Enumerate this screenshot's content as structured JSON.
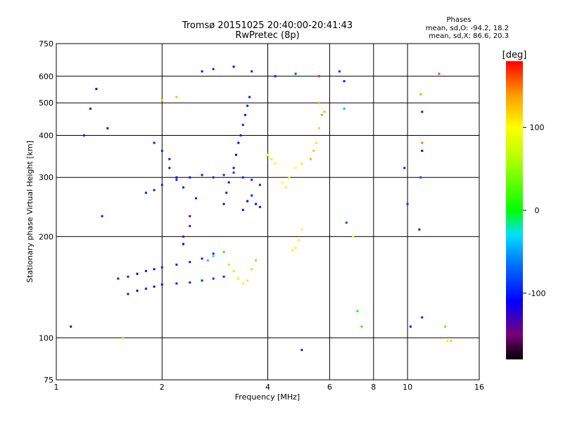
{
  "chart_data": {
    "type": "scatter",
    "title": "Tromsø 20151025 20:40:00-20:41:43",
    "subtitle": "RwPretec (8p)",
    "xlabel": "Frequency [MHz]",
    "ylabel": "Stationary phase Virtual Height [km]",
    "x_scale": "log",
    "y_scale": "log",
    "xlim": [
      1,
      16
    ],
    "ylim": [
      75,
      750
    ],
    "x_ticks": [
      {
        "value": 1,
        "label": "1"
      },
      {
        "value": 2,
        "label": "2"
      },
      {
        "value": 4,
        "label": "4"
      },
      {
        "value": 6,
        "label": "6"
      },
      {
        "value": 8,
        "label": "8"
      },
      {
        "value": 10,
        "label": "10"
      },
      {
        "value": 16,
        "label": "16"
      }
    ],
    "x_grid": [
      2,
      4,
      6,
      8,
      10
    ],
    "y_ticks": [
      {
        "value": 75,
        "label": "75"
      },
      {
        "value": 100,
        "label": "100"
      },
      {
        "value": 200,
        "label": "200"
      },
      {
        "value": 300,
        "label": "300"
      },
      {
        "value": 400,
        "label": "400"
      },
      {
        "value": 500,
        "label": "500"
      },
      {
        "value": 600,
        "label": "600"
      },
      {
        "value": 750,
        "label": "750"
      }
    ],
    "y_grid": [
      100,
      200,
      300,
      400,
      500,
      600
    ],
    "grid": true,
    "stats": {
      "heading": "Phases",
      "line_o": "mean, sd,O: -94.2, 18.2",
      "line_x": "mean, sd,X:  86.6, 20.3"
    },
    "colorbar": {
      "label": "[deg]",
      "range": [
        -180,
        180
      ],
      "ticks": [
        {
          "value": 100,
          "label": "100"
        },
        {
          "value": 0,
          "label": "0"
        },
        {
          "value": -100,
          "label": "-100"
        }
      ],
      "stops": [
        {
          "value": -180,
          "color": "#000000"
        },
        {
          "value": -150,
          "color": "#7a007a"
        },
        {
          "value": -110,
          "color": "#0000ff"
        },
        {
          "value": -60,
          "color": "#0080ff"
        },
        {
          "value": -30,
          "color": "#00e0ff"
        },
        {
          "value": 0,
          "color": "#00ff00"
        },
        {
          "value": 60,
          "color": "#b0ff00"
        },
        {
          "value": 100,
          "color": "#ffff00"
        },
        {
          "value": 140,
          "color": "#ff9900"
        },
        {
          "value": 180,
          "color": "#ff0000"
        }
      ]
    },
    "series": [
      {
        "points": [
          [
            1.6,
            135,
            -105
          ],
          [
            1.7,
            138,
            -108
          ],
          [
            1.8,
            140,
            -102
          ],
          [
            1.9,
            142,
            -110
          ],
          [
            2.0,
            144,
            -104
          ],
          [
            2.2,
            145,
            -98
          ],
          [
            2.4,
            146,
            -100
          ],
          [
            2.6,
            148,
            -96
          ],
          [
            2.8,
            150,
            -94
          ],
          [
            3.0,
            152,
            -92
          ],
          [
            1.5,
            150,
            -100
          ],
          [
            1.6,
            152,
            -95
          ],
          [
            1.7,
            155,
            -108
          ],
          [
            1.8,
            158,
            -102
          ],
          [
            1.9,
            160,
            -104
          ],
          [
            2.0,
            162,
            -98
          ],
          [
            2.2,
            165,
            -101
          ],
          [
            2.4,
            168,
            -99
          ],
          [
            2.6,
            172,
            -95
          ],
          [
            2.8,
            178,
            -90
          ],
          [
            1.8,
            270,
            -95
          ],
          [
            1.9,
            275,
            -100
          ],
          [
            2.0,
            285,
            -92
          ],
          [
            2.2,
            295,
            -96
          ],
          [
            2.4,
            300,
            -100
          ],
          [
            2.6,
            305,
            -98
          ],
          [
            2.8,
            300,
            -94
          ],
          [
            3.0,
            305,
            -90
          ],
          [
            3.2,
            310,
            -92
          ],
          [
            3.4,
            300,
            -96
          ],
          [
            3.6,
            295,
            -94
          ],
          [
            3.8,
            285,
            -98
          ],
          [
            1.9,
            380,
            -100
          ],
          [
            2.0,
            360,
            -95
          ],
          [
            2.1,
            340,
            -102
          ],
          [
            2.1,
            320,
            -98
          ],
          [
            2.2,
            300,
            -104
          ],
          [
            2.3,
            280,
            -96
          ],
          [
            2.5,
            260,
            -100
          ],
          [
            2.4,
            230,
            -140
          ],
          [
            2.4,
            215,
            -150
          ],
          [
            2.3,
            200,
            -100
          ],
          [
            2.3,
            190,
            -110
          ],
          [
            3.0,
            250,
            -120
          ],
          [
            3.05,
            270,
            -130
          ],
          [
            3.1,
            290,
            -125
          ],
          [
            3.2,
            320,
            -130
          ],
          [
            3.25,
            350,
            -115
          ],
          [
            3.3,
            380,
            -110
          ],
          [
            3.35,
            400,
            -100
          ],
          [
            3.4,
            430,
            -95
          ],
          [
            3.45,
            460,
            -98
          ],
          [
            3.5,
            490,
            -100
          ],
          [
            3.55,
            520,
            -102
          ],
          [
            3.4,
            240,
            -105
          ],
          [
            3.5,
            255,
            -110
          ],
          [
            3.6,
            265,
            -100
          ],
          [
            3.7,
            250,
            -108
          ],
          [
            3.8,
            245,
            -104
          ],
          [
            2.7,
            170,
            -40
          ],
          [
            2.8,
            175,
            -30
          ],
          [
            3.0,
            180,
            10
          ],
          [
            3.1,
            165,
            60
          ],
          [
            3.2,
            158,
            70
          ],
          [
            3.3,
            150,
            80
          ],
          [
            3.4,
            145,
            85
          ],
          [
            3.5,
            148,
            75
          ],
          [
            3.6,
            160,
            60
          ],
          [
            3.7,
            170,
            40
          ],
          [
            4.0,
            350,
            100
          ],
          [
            4.1,
            340,
            110
          ],
          [
            4.2,
            330,
            95
          ],
          [
            4.4,
            290,
            100
          ],
          [
            4.5,
            280,
            90
          ],
          [
            4.6,
            300,
            95
          ],
          [
            4.8,
            320,
            100
          ],
          [
            5.0,
            330,
            110
          ],
          [
            5.3,
            340,
            130
          ],
          [
            5.4,
            360,
            120
          ],
          [
            5.5,
            380,
            110
          ],
          [
            5.6,
            420,
            115
          ],
          [
            5.7,
            460,
            140
          ],
          [
            5.6,
            500,
            135
          ],
          [
            4.8,
            185,
            90
          ],
          [
            4.9,
            195,
            95
          ],
          [
            5.0,
            210,
            100
          ],
          [
            4.7,
            182,
            85
          ],
          [
            2.6,
            620,
            -100
          ],
          [
            2.8,
            630,
            -90
          ],
          [
            3.2,
            640,
            -110
          ],
          [
            3.6,
            620,
            -95
          ],
          [
            4.2,
            600,
            -100
          ],
          [
            4.8,
            610,
            -80
          ],
          [
            5.6,
            600,
            170
          ],
          [
            1.3,
            550,
            -110
          ],
          [
            1.25,
            480,
            -100
          ],
          [
            1.2,
            400,
            -95
          ],
          [
            1.35,
            230,
            -100
          ],
          [
            1.4,
            420,
            -105
          ],
          [
            1.1,
            108,
            -120
          ],
          [
            1.55,
            100,
            120
          ],
          [
            2.0,
            510,
            120
          ],
          [
            2.2,
            520,
            125
          ],
          [
            6.6,
            580,
            -100
          ],
          [
            6.6,
            480,
            -40
          ],
          [
            6.7,
            220,
            -80
          ],
          [
            7.0,
            200,
            100
          ],
          [
            7.2,
            120,
            0
          ],
          [
            7.4,
            108,
            10
          ],
          [
            9.8,
            320,
            -100
          ],
          [
            10.0,
            250,
            -90
          ],
          [
            10.2,
            108,
            -110
          ],
          [
            11.0,
            115,
            -100
          ],
          [
            10.9,
            530,
            140
          ],
          [
            11.0,
            470,
            -100
          ],
          [
            11.0,
            380,
            150
          ],
          [
            11.0,
            360,
            -110
          ],
          [
            10.9,
            300,
            -80
          ],
          [
            10.8,
            210,
            -100
          ],
          [
            12.3,
            610,
            160
          ],
          [
            12.8,
            108,
            30
          ],
          [
            13.0,
            98,
            110
          ],
          [
            13.3,
            98,
            120
          ],
          [
            5.0,
            92,
            -100
          ],
          [
            6.4,
            620,
            -90
          ],
          [
            5.8,
            470,
            130
          ]
        ]
      }
    ]
  }
}
